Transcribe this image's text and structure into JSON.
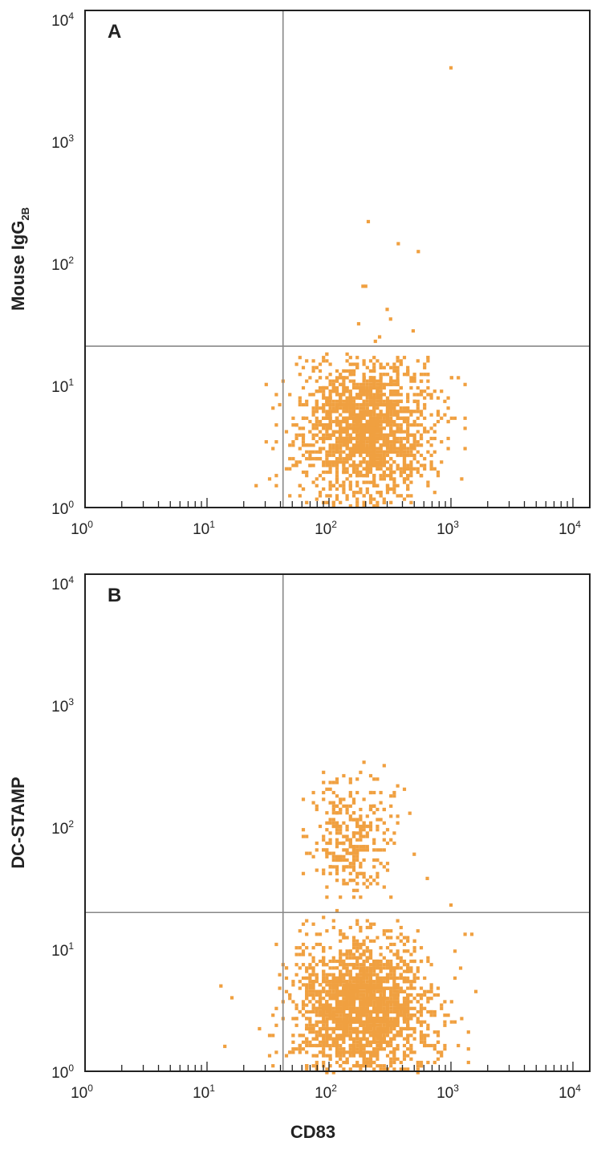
{
  "chart_data": [
    {
      "type": "scatter",
      "panel_label": "A",
      "xlabel": "",
      "ylabel": "Mouse IgG",
      "ylabel_subscript": "2B",
      "xscale": "log",
      "yscale": "log",
      "xlim": [
        1,
        14000
      ],
      "ylim": [
        1,
        14000
      ],
      "x_ticks": [
        {
          "base": "10",
          "exp": "0"
        },
        {
          "base": "10",
          "exp": "1"
        },
        {
          "base": "10",
          "exp": "2"
        },
        {
          "base": "10",
          "exp": "3"
        },
        {
          "base": "10",
          "exp": "4"
        }
      ],
      "y_ticks": [
        {
          "base": "10",
          "exp": "0"
        },
        {
          "base": "10",
          "exp": "1"
        },
        {
          "base": "10",
          "exp": "2"
        },
        {
          "base": "10",
          "exp": "3"
        },
        {
          "base": "10",
          "exp": "4"
        }
      ],
      "quadrant_gate": {
        "x": 42,
        "y": 21
      },
      "point_color": "#f0a040",
      "clusters": [
        {
          "x_center": 200,
          "y_center": 4.5,
          "x_log_sd": 0.27,
          "y_log_sd": 0.3,
          "x_min": 25,
          "x_max": 1600,
          "y_min": 1,
          "y_max": 18,
          "count": 1700
        }
      ],
      "outliers": [
        {
          "x": 1000,
          "y": 4000
        },
        {
          "x": 210,
          "y": 220
        },
        {
          "x": 370,
          "y": 145
        },
        {
          "x": 540,
          "y": 125
        },
        {
          "x": 190,
          "y": 65
        },
        {
          "x": 200,
          "y": 65
        },
        {
          "x": 300,
          "y": 42
        },
        {
          "x": 320,
          "y": 35
        },
        {
          "x": 175,
          "y": 32
        },
        {
          "x": 490,
          "y": 28
        },
        {
          "x": 240,
          "y": 23
        },
        {
          "x": 260,
          "y": 25
        }
      ]
    },
    {
      "type": "scatter",
      "panel_label": "B",
      "xlabel": "CD83",
      "ylabel": "DC-STAMP",
      "xscale": "log",
      "yscale": "log",
      "xlim": [
        1,
        14000
      ],
      "ylim": [
        1,
        14000
      ],
      "x_ticks": [
        {
          "base": "10",
          "exp": "0"
        },
        {
          "base": "10",
          "exp": "1"
        },
        {
          "base": "10",
          "exp": "2"
        },
        {
          "base": "10",
          "exp": "3"
        },
        {
          "base": "10",
          "exp": "4"
        }
      ],
      "y_ticks": [
        {
          "base": "10",
          "exp": "0"
        },
        {
          "base": "10",
          "exp": "1"
        },
        {
          "base": "10",
          "exp": "2"
        },
        {
          "base": "10",
          "exp": "3"
        },
        {
          "base": "10",
          "exp": "4"
        }
      ],
      "quadrant_gate": {
        "x": 42,
        "y": 20
      },
      "point_color": "#f0a040",
      "clusters": [
        {
          "x_center": 190,
          "y_center": 3.2,
          "x_log_sd": 0.28,
          "y_log_sd": 0.3,
          "x_min": 13,
          "x_max": 1600,
          "y_min": 1,
          "y_max": 20,
          "count": 1900
        },
        {
          "x_center": 150,
          "y_center": 85,
          "x_log_sd": 0.17,
          "y_log_sd": 0.24,
          "x_min": 60,
          "x_max": 800,
          "y_min": 20,
          "y_max": 350,
          "count": 320
        }
      ],
      "outliers": [
        {
          "x": 13,
          "y": 5
        },
        {
          "x": 16,
          "y": 4
        },
        {
          "x": 14,
          "y": 1.6
        },
        {
          "x": 1000,
          "y": 23
        },
        {
          "x": 1600,
          "y": 4.5
        },
        {
          "x": 1200,
          "y": 7
        },
        {
          "x": 640,
          "y": 38
        },
        {
          "x": 500,
          "y": 60
        },
        {
          "x": 460,
          "y": 130
        }
      ]
    }
  ]
}
